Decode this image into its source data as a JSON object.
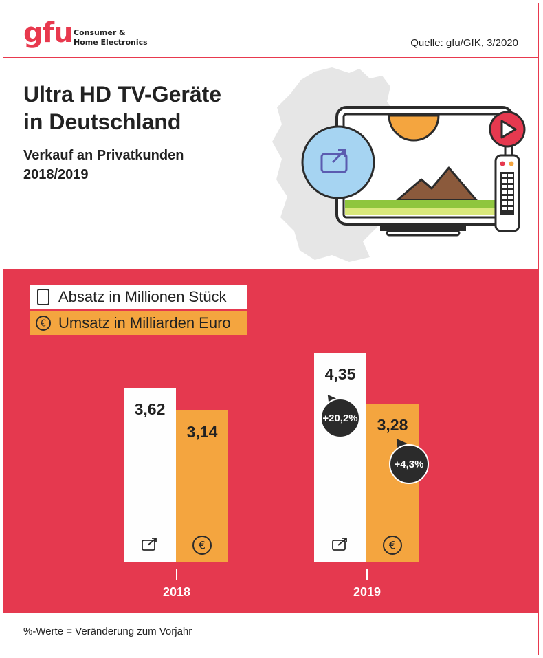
{
  "header": {
    "logo": "gfu",
    "logo_sub_line1": "Consumer &",
    "logo_sub_line2": "Home Electronics",
    "source": "Quelle: gfu/GfK, 3/2020"
  },
  "title_line1": "Ultra HD TV-Geräte",
  "title_line2": "in Deutschland",
  "subtitle_line1": "Verkauf an Privatkunden",
  "subtitle_line2": "2018/2019",
  "legend": {
    "units": "Absatz in Millionen Stück",
    "revenue": "Umsatz in Milliarden Euro"
  },
  "colors": {
    "brand_red": "#e8394e",
    "panel_red": "#e5394f",
    "orange": "#f4a53f",
    "white": "#fefefe",
    "bubble": "#2b2b2b"
  },
  "icons": [
    "tv-screen-icon",
    "euro-icon",
    "play-icon",
    "remote-icon",
    "sun-icon",
    "mountain-icon",
    "germany-map"
  ],
  "chart_data": {
    "type": "bar",
    "categories": [
      "2018",
      "2019"
    ],
    "series": [
      {
        "name": "Absatz in Millionen Stück",
        "values": [
          3.62,
          4.35
        ],
        "labels": [
          "3,62",
          "4,35"
        ]
      },
      {
        "name": "Umsatz in Milliarden Euro",
        "values": [
          3.14,
          3.28
        ],
        "labels": [
          "3,14",
          "3,28"
        ]
      }
    ],
    "changes": {
      "units_2019": "+20,2%",
      "revenue_2019": "+4,3%"
    },
    "legend_position": "top-left"
  },
  "footnote": "%-Werte = Veränderung zum Vorjahr"
}
